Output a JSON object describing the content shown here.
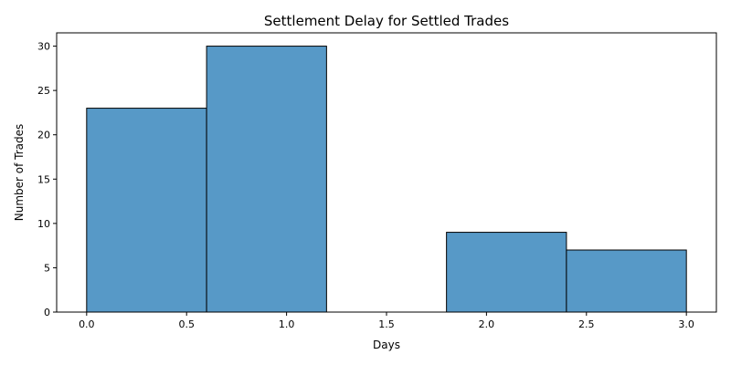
{
  "chart_data": {
    "type": "bar",
    "title": "Settlement Delay for Settled Trades",
    "xlabel": "Days",
    "ylabel": "Number of Trades",
    "bin_edges": [
      0.0,
      0.6,
      1.2,
      1.8,
      2.4,
      3.0
    ],
    "values": [
      23,
      30,
      0,
      9,
      7
    ],
    "xlim": [
      -0.15,
      3.15
    ],
    "ylim": [
      0,
      31.5
    ],
    "xticks": [
      0.0,
      0.5,
      1.0,
      1.5,
      2.0,
      2.5,
      3.0
    ],
    "xtick_labels": [
      "0.0",
      "0.5",
      "1.0",
      "1.5",
      "2.0",
      "2.5",
      "3.0"
    ],
    "yticks": [
      0,
      5,
      10,
      15,
      20,
      25,
      30
    ],
    "ytick_labels": [
      "0",
      "5",
      "10",
      "15",
      "20",
      "25",
      "30"
    ],
    "bar_color": "#5799c7",
    "edge_color": "#000000",
    "grid": false,
    "legend": "none"
  }
}
